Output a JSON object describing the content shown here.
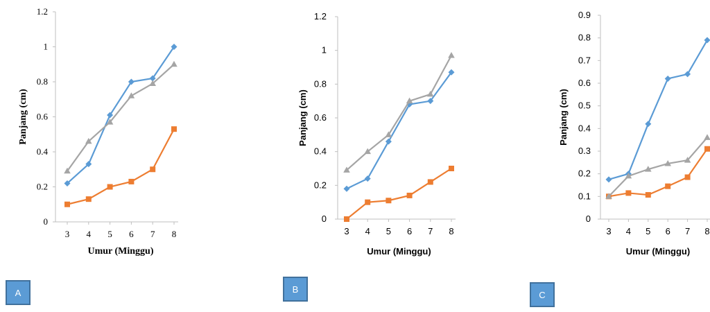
{
  "chart_data": [
    {
      "type": "line",
      "panel_label": "A",
      "xlabel": "Umur (Minggu)",
      "ylabel": "Panjang (cm)",
      "x": [
        3,
        4,
        5,
        6,
        7,
        8
      ],
      "ylim": [
        0,
        1.2
      ],
      "yticks": [
        "0",
        "0.2",
        "0.4",
        "0.6",
        "0.8",
        "1",
        "1.2"
      ],
      "grid": false,
      "legend": "none",
      "series": [
        {
          "color": "#5b9bd5",
          "marker": "diamond",
          "values": [
            0.22,
            0.33,
            0.61,
            0.8,
            0.82,
            1.0
          ]
        },
        {
          "color": "#ed7d31",
          "marker": "square",
          "values": [
            0.1,
            0.13,
            0.2,
            0.23,
            0.3,
            0.53
          ]
        },
        {
          "color": "#a5a5a5",
          "marker": "triangle",
          "values": [
            0.29,
            0.46,
            0.57,
            0.72,
            0.79,
            0.9
          ]
        }
      ]
    },
    {
      "type": "line",
      "panel_label": "B",
      "xlabel": "Umur (Minggu)",
      "ylabel": "Panjang (cm)",
      "x": [
        3,
        4,
        5,
        6,
        7,
        8
      ],
      "ylim": [
        0,
        1.2
      ],
      "yticks": [
        "0",
        "0.2",
        "0.4",
        "0.6",
        "0.8",
        "1",
        "1.2"
      ],
      "grid": false,
      "legend": "none",
      "series": [
        {
          "color": "#5b9bd5",
          "marker": "diamond",
          "values": [
            0.18,
            0.24,
            0.46,
            0.68,
            0.7,
            0.87
          ]
        },
        {
          "color": "#ed7d31",
          "marker": "square",
          "values": [
            0.0,
            0.1,
            0.11,
            0.14,
            0.22,
            0.3
          ]
        },
        {
          "color": "#a5a5a5",
          "marker": "triangle",
          "values": [
            0.29,
            0.4,
            0.5,
            0.7,
            0.74,
            0.97
          ]
        }
      ]
    },
    {
      "type": "line",
      "panel_label": "C",
      "xlabel": "Umur (Minggu)",
      "ylabel": "Panjang (cm)",
      "x": [
        3,
        4,
        5,
        6,
        7,
        8
      ],
      "ylim": [
        0,
        0.9
      ],
      "yticks": [
        "0",
        "0.1",
        "0.2",
        "0.3",
        "0.4",
        "0.5",
        "0.6",
        "0.7",
        "0.8",
        "0.9"
      ],
      "grid": false,
      "legend": "none",
      "series": [
        {
          "color": "#5b9bd5",
          "marker": "diamond",
          "values": [
            0.175,
            0.2,
            0.42,
            0.62,
            0.64,
            0.79
          ]
        },
        {
          "color": "#ed7d31",
          "marker": "square",
          "values": [
            0.1,
            0.115,
            0.107,
            0.145,
            0.185,
            0.31
          ]
        },
        {
          "color": "#a5a5a5",
          "marker": "triangle",
          "values": [
            0.1,
            0.19,
            0.22,
            0.245,
            0.26,
            0.36
          ]
        }
      ]
    }
  ]
}
